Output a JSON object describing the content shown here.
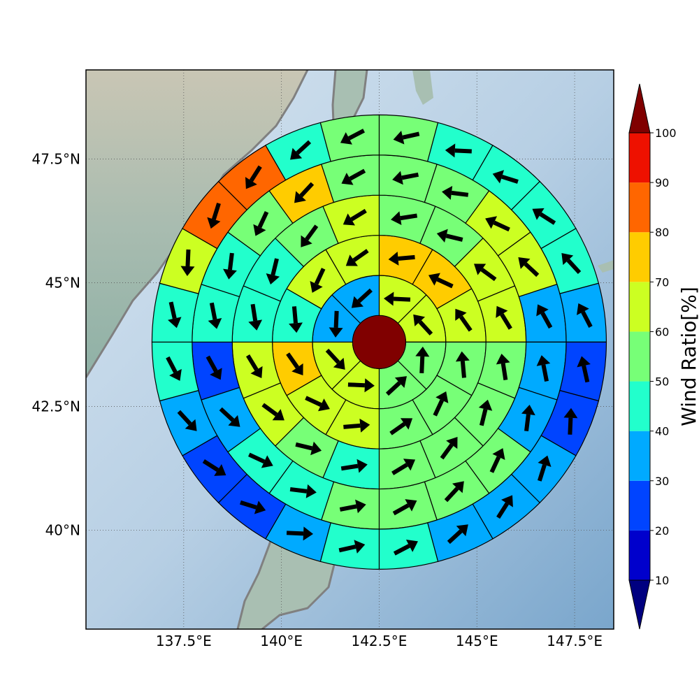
{
  "map": {
    "lon_range": [
      135.0,
      148.5
    ],
    "lat_range": [
      38.0,
      49.3
    ],
    "x_ticks": [
      {
        "value": 137.5,
        "label": "137.5°E"
      },
      {
        "value": 140.0,
        "label": "140°E"
      },
      {
        "value": 142.5,
        "label": "142.5°E"
      },
      {
        "value": 145.0,
        "label": "145°E"
      },
      {
        "value": 147.5,
        "label": "147.5°E"
      }
    ],
    "y_ticks": [
      {
        "value": 47.5,
        "label": "47.5°N"
      },
      {
        "value": 45.0,
        "label": "45°N"
      },
      {
        "value": 42.5,
        "label": "42.5°N"
      },
      {
        "value": 40.0,
        "label": "40°N"
      }
    ],
    "grid": "dotted",
    "background": "shaded-relief",
    "coastline_color": "#808080"
  },
  "colorbar": {
    "title": "Wind Ratio[%]",
    "ticks": [
      "10",
      "20",
      "30",
      "40",
      "50",
      "60",
      "70",
      "80",
      "90",
      "100"
    ],
    "colors": [
      "#0000cc",
      "#0044ff",
      "#00aaff",
      "#22ffcc",
      "#77ff77",
      "#ccff22",
      "#ffcc00",
      "#ff6600",
      "#ee1100"
    ],
    "under_color": "#000080",
    "over_color": "#800000"
  },
  "chart_data": {
    "type": "polar-sector-map",
    "center": {
      "lon": 142.5,
      "lat": 43.8
    },
    "center_color": "#800000",
    "ring_count": 5,
    "ring_sectors": [
      8,
      12,
      16,
      20,
      24
    ],
    "ratio_colors": {
      "10": "#0000cc",
      "20": "#0044ff",
      "30": "#00aaff",
      "40": "#22ffcc",
      "50": "#77ff77",
      "60": "#ccff22",
      "70": "#ffcc00",
      "80": "#ff6600",
      "90": "#ee1100"
    },
    "rings": [
      {
        "ring": 1,
        "values": [
          60,
          60,
          50,
          50,
          60,
          60,
          30,
          30
        ]
      },
      {
        "ring": 2,
        "values": [
          70,
          70,
          60,
          50,
          50,
          50,
          60,
          60,
          70,
          40,
          60,
          60
        ]
      },
      {
        "ring": 3,
        "values": [
          50,
          50,
          60,
          60,
          50,
          50,
          50,
          50,
          40,
          50,
          60,
          60,
          40,
          40,
          50,
          60
        ]
      },
      {
        "ring": 4,
        "values": [
          50,
          50,
          60,
          60,
          30,
          30,
          30,
          50,
          50,
          50,
          50,
          40,
          40,
          30,
          20,
          40,
          40,
          50,
          70,
          50
        ]
      },
      {
        "ring": 5,
        "values": [
          50,
          40,
          40,
          40,
          40,
          30,
          20,
          20,
          30,
          30,
          30,
          40,
          40,
          30,
          20,
          20,
          30,
          40,
          40,
          60,
          80,
          80,
          40,
          50
        ]
      }
    ]
  }
}
